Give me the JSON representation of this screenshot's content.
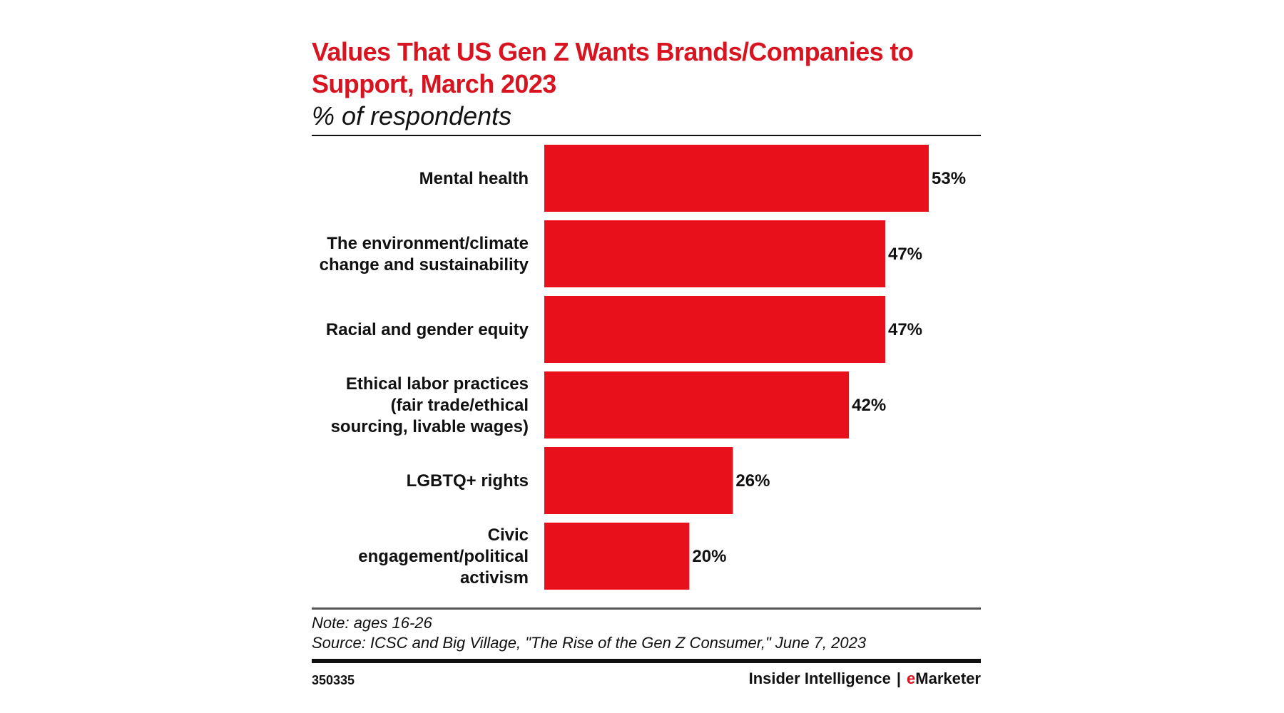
{
  "colors": {
    "accent": "#d7141f",
    "bar": "#e8111b",
    "text": "#111111"
  },
  "footer": {
    "note": "Note: ages 16-26",
    "source": "Source: ICSC and Big Village, \"The Rise of the Gen Z Consumer,\" June 7, 2023",
    "chart_id": "350335",
    "brand_left": "Insider Intelligence",
    "brand_separator": "|",
    "brand_right_first": "e",
    "brand_right_rest": "Marketer"
  },
  "chart_data": {
    "type": "bar",
    "orientation": "horizontal",
    "title": "Values That US Gen Z Wants Brands/Companies to Support, March 2023",
    "subtitle": "% of respondents",
    "categories": [
      [
        "Mental health"
      ],
      [
        "The environment/climate",
        "change and sustainability"
      ],
      [
        "Racial and gender equity"
      ],
      [
        "Ethical labor practices",
        "(fair trade/ethical",
        "sourcing, livable wages)"
      ],
      [
        "LGBTQ+ rights"
      ],
      [
        "Civic",
        "engagement/political",
        "activism"
      ]
    ],
    "values": [
      53,
      47,
      47,
      42,
      26,
      20
    ],
    "value_labels": [
      "53%",
      "47%",
      "47%",
      "42%",
      "26%",
      "20%"
    ],
    "unit": "%",
    "xlim": [
      0,
      60
    ],
    "grid": false,
    "legend": "none"
  }
}
